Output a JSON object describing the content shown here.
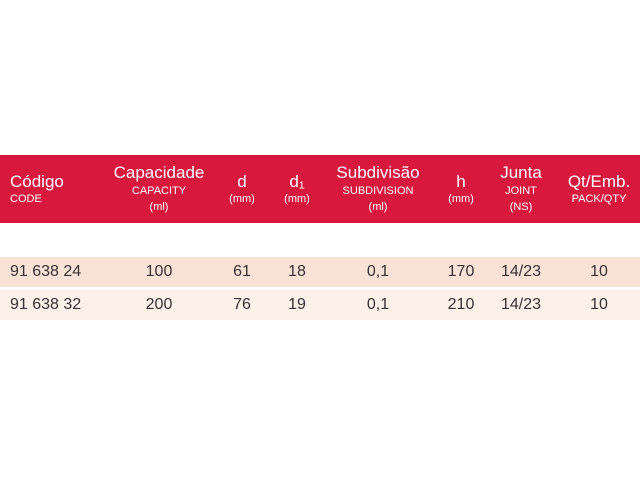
{
  "header": {
    "code": {
      "main": "Código",
      "sub": "CODE"
    },
    "capacity": {
      "main": "Capacidade",
      "sub1": "CAPACITY",
      "sub2": "(ml)"
    },
    "d": {
      "main": "d",
      "sub": "(mm)"
    },
    "d1": {
      "main": "d₁",
      "sub": "(mm)"
    },
    "subdivision": {
      "main": "Subdivisão",
      "sub1": "SUBDIVISION",
      "sub2": "(ml)"
    },
    "h": {
      "main": "h",
      "sub": "(mm)"
    },
    "joint": {
      "main": "Junta",
      "sub1": "JOINT",
      "sub2": "(NS)"
    },
    "pack": {
      "main": "Qt/Emb.",
      "sub": "PACK/QTY"
    }
  },
  "rows": [
    {
      "code": "91 638 24",
      "capacity": "100",
      "d": "61",
      "d1": "18",
      "subdivision": "0,1",
      "h": "170",
      "joint": "14/23",
      "pack": "10"
    },
    {
      "code": "91 638 32",
      "capacity": "200",
      "d": "76",
      "d1": "19",
      "subdivision": "0,1",
      "h": "210",
      "joint": "14/23",
      "pack": "10"
    }
  ],
  "colors": {
    "header_bg": "#d8193d",
    "row_odd": "#fbe2d6",
    "row_even": "#fdf0e9"
  }
}
